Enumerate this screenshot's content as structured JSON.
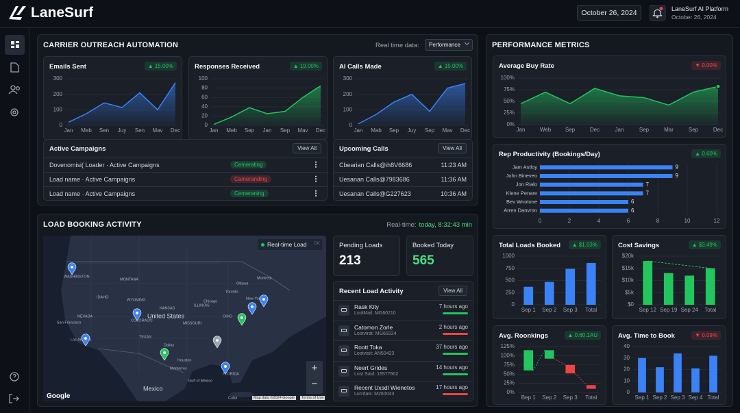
{
  "header": {
    "brand": "LaneSurf",
    "date": "October 26, 2024",
    "platform": "LaneSurf AI Platform",
    "platform_date": "October 26, 2024"
  },
  "outreach": {
    "title": "CARRIER OUTREACH AUTOMATION",
    "realtime_label": "Real time data:",
    "dropdown": "Performance"
  },
  "campaigns": {
    "title": "Active Campaigns",
    "action": "View All",
    "rows": [
      {
        "name": "Dovenomisi( Loader · Active Campaigns",
        "status": "Cemerating",
        "color": "#22c55e"
      },
      {
        "name": "Load name · Active Campaigns",
        "status": "Cameranding",
        "color": "#ef4444"
      },
      {
        "name": "Load name · Active Campaigns",
        "status": "Cemeraning",
        "color": "#22c55e"
      }
    ]
  },
  "calls": {
    "title": "Upcoming Calls",
    "action": "View All",
    "rows": [
      {
        "name": "Cbearian Calls@ih8V6686",
        "time": "11:23 AM"
      },
      {
        "name": "Uesanan Calls@7983686",
        "time": "11:36 AM"
      },
      {
        "name": "Uesanan Calls@G227623",
        "time": "10:36 AM"
      }
    ]
  },
  "booking": {
    "title": "LOAD BOOKING ACTIVITY",
    "realtime_label": "Real-time:",
    "realtime_value": "today, 8:32:43 min",
    "map": {
      "legend": "Real-time Load",
      "legend_tag": "DK",
      "labels": [
        "WASHINGTON",
        "MONTANA",
        "IDAHO",
        "WYOMING",
        "NEVADA",
        "COLORADO",
        "United States",
        "San Francisco",
        "Los Angeles",
        "TEXAS",
        "Dallas",
        "Houston",
        "KANSAS",
        "MISSOURI",
        "ILLINOIS",
        "Chicago",
        "OHIO",
        "Ottawa",
        "Montreal",
        "Toronto",
        "New York",
        "Gulf of Mexico",
        "FLORIDA",
        "Monterrey",
        "Mexico",
        "Cuba"
      ],
      "zoom_in": "+",
      "zoom_out": "−",
      "brand": "Google",
      "attribution": "Map data ©2024 Google",
      "terms": "Terms of Use"
    },
    "stats": [
      {
        "label": "Pending Loads",
        "value": 213,
        "color": "#ffffff"
      },
      {
        "label": "Booked Today",
        "value": 565,
        "color": "#4ade80"
      }
    ],
    "recent": {
      "title": "Recent Load Activity",
      "action": "View All",
      "items": [
        {
          "name": "Rask Kity",
          "id": "LoolMail: MG60210",
          "time": "7 hours ago",
          "color": "#22c55e"
        },
        {
          "name": "Catomon Zorle",
          "id": "Lootvirat: MG60224",
          "time": "2 hours ago",
          "color": "#ef4444"
        },
        {
          "name": "Roott Toka",
          "id": "Lootvisit: AN50423",
          "time": "37 hours ago",
          "color": "#22c55e"
        },
        {
          "name": "Neert Grides",
          "id": "Lost Said: 16577602",
          "time": "14 hours ago",
          "color": "#22c55e"
        },
        {
          "name": "Recent Uxsdl Wienetos",
          "id": "Lurrdaw: M260043",
          "time": "17 hours ago",
          "color": "#ef4444"
        }
      ]
    }
  },
  "metrics": {
    "title": "PERFORMANCE METRICS"
  },
  "chart_data": [
    {
      "type": "area",
      "title": "Emails Sent",
      "badge": "▲ 15.00%",
      "badge_color": "#22c55e",
      "color": "#3b82f6",
      "categories": [
        "Jan",
        "Meb",
        "Sen",
        "Juy",
        "Sen",
        "Mav",
        "Dec"
      ],
      "values": [
        20,
        75,
        145,
        115,
        210,
        100,
        275
      ],
      "ylim": [
        0,
        300
      ],
      "yticks": [
        0,
        100,
        200,
        300
      ],
      "grid": true
    },
    {
      "type": "area",
      "title": "Responses Received",
      "badge": "▲ 19.00%",
      "badge_color": "#22c55e",
      "color": "#22c55e",
      "categories": [
        "Jan",
        "Meb",
        "Sep",
        "Jan",
        "Sep",
        "Mav",
        "Dec"
      ],
      "values": [
        2,
        18,
        38,
        25,
        30,
        60,
        85
      ],
      "ylim": [
        0,
        100
      ],
      "yticks": [
        0,
        20,
        40,
        60,
        80,
        100
      ],
      "grid": true
    },
    {
      "type": "area",
      "title": "AI Calls Made",
      "badge": "▲ 15.00%",
      "badge_color": "#22c55e",
      "color": "#3b82f6",
      "categories": [
        "Jan",
        "Mab",
        "Sep",
        "Juy",
        "Sep",
        "Mav",
        "Dec"
      ],
      "values": [
        10,
        70,
        150,
        200,
        90,
        240,
        270
      ],
      "ylim": [
        0,
        300
      ],
      "yticks": [
        0,
        100,
        200,
        300
      ],
      "grid": true
    },
    {
      "type": "area",
      "title": "Average Buy Rate",
      "badge": "▼ 0.00%",
      "badge_color": "#ef4444",
      "color": "#22c55e",
      "marker": "last",
      "categories": [
        "Jan",
        "Web",
        "Sep",
        "Dec",
        "Jan",
        "Sep",
        "Mar",
        "Sep",
        "Dec"
      ],
      "values": [
        45,
        70,
        45,
        78,
        62,
        58,
        42,
        70,
        82
      ],
      "ylim": [
        0,
        100
      ],
      "yticks": [
        {
          "value": 0,
          "label": "0%"
        },
        {
          "value": 25,
          "label": "25%"
        },
        {
          "value": 50,
          "label": "50%"
        },
        {
          "value": 75,
          "label": "75%"
        },
        {
          "value": 100,
          "label": "100%"
        }
      ],
      "grid": true
    },
    {
      "type": "hbar",
      "title": "Rep Productivity (Bookings/Day)",
      "badge": "▲ 0.60%",
      "badge_color": "#22c55e",
      "color": "#3b82f6",
      "categories": [
        "Jam Astloy",
        "John Bineveo",
        "Jon Rialo",
        "Klene Penare",
        "Bev Wnotone",
        "Arren Danvron"
      ],
      "values": [
        9,
        9,
        7,
        7,
        6,
        6
      ],
      "xlim": [
        0,
        12
      ],
      "xticks": [
        0,
        2,
        4,
        6,
        8,
        10,
        12
      ],
      "grid": true
    },
    {
      "type": "bar",
      "title": "Total Loads Booked",
      "badge": "▲ $1.03%",
      "badge_color": "#22c55e",
      "color": "#3b82f6",
      "categories": [
        "Sep 1",
        "Sep 2",
        "Sep 3",
        "Total"
      ],
      "values": [
        370,
        470,
        740,
        860
      ],
      "ylim": [
        0,
        1000
      ],
      "yticks": [
        0,
        250,
        500,
        750,
        1000
      ],
      "grid": true
    },
    {
      "type": "bar",
      "title": "Cost Savings",
      "badge": "▲ $3.49%",
      "badge_color": "#22c55e",
      "color": "#22c55e",
      "trend": true,
      "categories": [
        "Sep 12",
        "Sep 19",
        "Sep 24",
        "Total"
      ],
      "values": [
        18000,
        13000,
        12000,
        15000
      ],
      "ylim": [
        0,
        20000
      ],
      "yticks": [
        {
          "value": 0,
          "label": "$0"
        },
        {
          "value": 5000,
          "label": "$5k"
        },
        {
          "value": 10000,
          "label": "$10k"
        },
        {
          "value": 15000,
          "label": "$15k"
        },
        {
          "value": 20000,
          "label": "$20k"
        }
      ],
      "grid": true
    },
    {
      "type": "range",
      "title": "Avg. Roonkings",
      "badge": "▲ 0.60.1AU",
      "badge_color": "#22c55e",
      "colors": [
        "#22c55e",
        "#22c55e",
        "#ef4444",
        "#ef4444"
      ],
      "categories": [
        "Bep 1",
        "Sep 2",
        "Sep 3",
        "Total"
      ],
      "lows": [
        60,
        92,
        52,
        10
      ],
      "highs": [
        115,
        115,
        75,
        20
      ],
      "ylim": [
        0,
        125
      ],
      "yticks": [
        {
          "value": 0,
          "label": "0%"
        },
        {
          "value": 25,
          "label": "25%"
        },
        {
          "value": 50,
          "label": "50%"
        },
        {
          "value": 75,
          "label": "75%"
        },
        {
          "value": 100,
          "label": "100%"
        },
        {
          "value": 125,
          "label": "125%"
        }
      ],
      "grid": true
    },
    {
      "type": "bar",
      "title": "Avg. Time to Book",
      "badge": "▼ 0.09%",
      "badge_color": "#ef4444",
      "color": "#3b82f6",
      "categories": [
        "Sep 1",
        "Sep 2",
        "Sep 3",
        "Sep 4",
        "Total"
      ],
      "values": [
        30,
        22,
        34,
        21,
        32
      ],
      "ylim": [
        0,
        40
      ],
      "yticks": [
        0,
        10,
        20,
        30,
        40
      ],
      "grid": true
    }
  ]
}
